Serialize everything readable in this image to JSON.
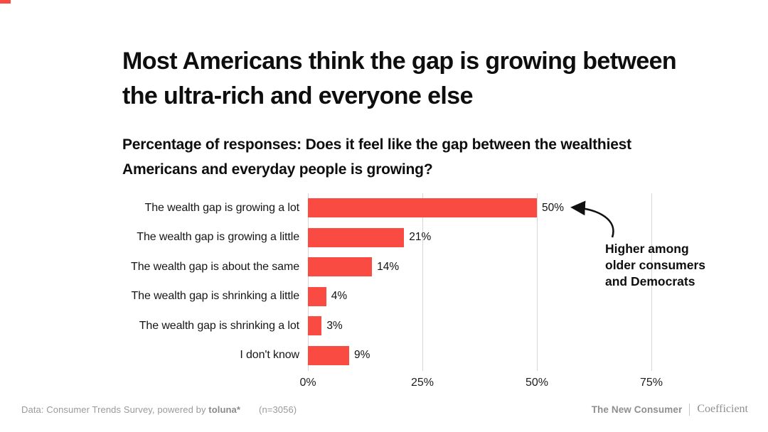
{
  "page": {
    "accent_color": "#F94B42"
  },
  "header": {
    "title": "Most Americans think the gap is growing between the ultra-rich and everyone else",
    "subtitle": "Percentage of responses: Does it feel like the gap between the wealthiest Americans and everyday people is growing?"
  },
  "chart_data": {
    "type": "bar",
    "orientation": "horizontal",
    "title": "Most Americans think the gap is growing between the ultra-rich and everyone else",
    "subtitle": "Percentage of responses: Does it feel like the gap between the wealthiest Americans and everyday people is growing?",
    "categories": [
      "The wealth gap is growing a lot",
      "The wealth gap is growing a little",
      "The wealth gap is about the same",
      "The wealth gap is shrinking a little",
      "The wealth gap is shrinking a lot",
      "I don't know"
    ],
    "values": [
      50,
      21,
      14,
      4,
      3,
      9
    ],
    "value_labels": [
      "50%",
      "21%",
      "14%",
      "4%",
      "3%",
      "9%"
    ],
    "x_ticks": [
      "0%",
      "25%",
      "50%",
      "75%"
    ],
    "x_tick_values": [
      0,
      25,
      50,
      75
    ],
    "xlim": [
      0,
      87
    ],
    "grid": true,
    "legend": false,
    "bar_color": "#F94B42",
    "annotation": "Higher among older consumers and Democrats",
    "annotation_target": "50% bar (The wealth gap is growing a lot)"
  },
  "annotation": {
    "text": "Higher among older consumers and Democrats"
  },
  "footer": {
    "source_prefix": "Data: Consumer Trends Survey, powered by ",
    "source_brand": "toluna*",
    "sample": "(n=3056)",
    "brand_left": "The New Consumer",
    "brand_right": "Coefficient"
  }
}
